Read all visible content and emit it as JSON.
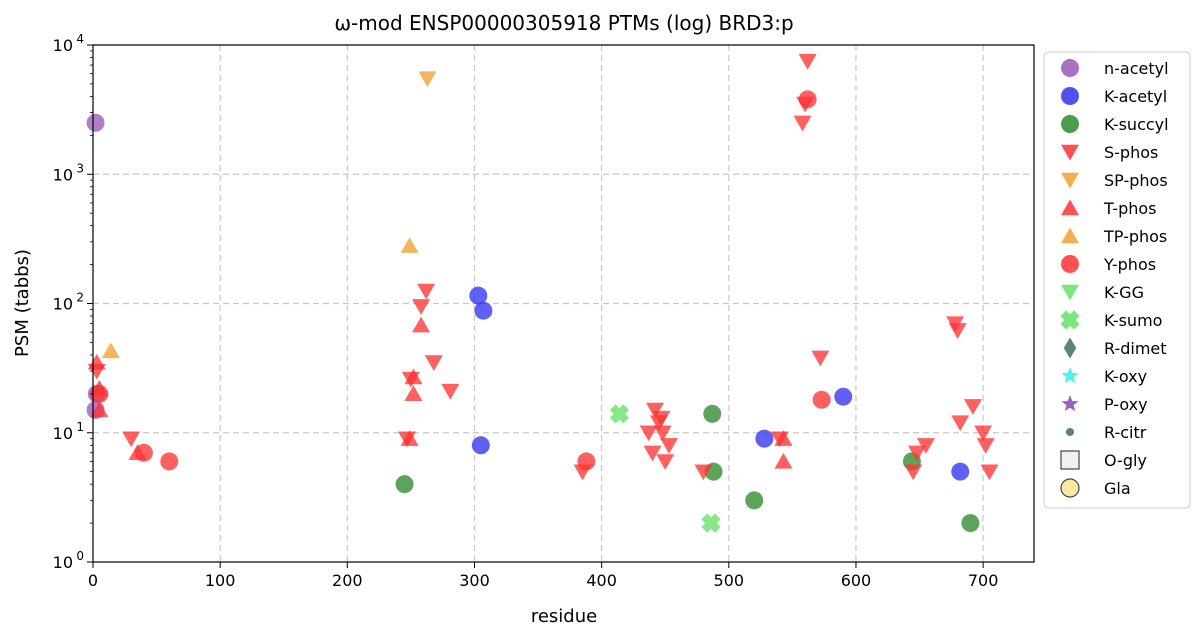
{
  "chart_data": {
    "type": "scatter",
    "title": "ω-mod ENSP00000305918 PTMs (log) BRD3:p",
    "xlabel": "residue",
    "ylabel": "PSM (tabbs)",
    "xlim": [
      0,
      740
    ],
    "ylim": [
      1,
      10000
    ],
    "yscale": "log",
    "xticks": [
      0,
      100,
      200,
      300,
      400,
      500,
      600,
      700
    ],
    "yticks": [
      {
        "value": 1,
        "base": "10",
        "exp": "0"
      },
      {
        "value": 10,
        "base": "10",
        "exp": "1"
      },
      {
        "value": 100,
        "base": "10",
        "exp": "2"
      },
      {
        "value": 1000,
        "base": "10",
        "exp": "3"
      },
      {
        "value": 10000,
        "base": "10",
        "exp": "4"
      }
    ],
    "grid": true,
    "legend_position": "outside-right",
    "series": [
      {
        "name": "n-acetyl",
        "marker": "circle",
        "color": "#9b59b6",
        "points": [
          [
            2,
            2500
          ],
          [
            2,
            15
          ],
          [
            3,
            20
          ]
        ]
      },
      {
        "name": "K-acetyl",
        "marker": "circle",
        "color": "#3333ee",
        "points": [
          [
            303,
            115
          ],
          [
            307,
            88
          ],
          [
            305,
            8
          ],
          [
            528,
            9
          ],
          [
            590,
            19
          ],
          [
            682,
            5
          ]
        ]
      },
      {
        "name": "K-succyl",
        "marker": "circle",
        "color": "#2e8b2e",
        "points": [
          [
            245,
            4
          ],
          [
            487,
            14
          ],
          [
            488,
            5
          ],
          [
            520,
            3
          ],
          [
            644,
            6
          ],
          [
            690,
            2
          ]
        ]
      },
      {
        "name": "S-phos",
        "marker": "triangle-down",
        "color": "#ff3333",
        "points": [
          [
            3,
            30
          ],
          [
            30,
            9
          ],
          [
            247,
            9
          ],
          [
            250,
            26
          ],
          [
            258,
            95
          ],
          [
            262,
            125
          ],
          [
            268,
            35
          ],
          [
            281,
            21
          ],
          [
            385,
            5
          ],
          [
            437,
            10
          ],
          [
            440,
            7
          ],
          [
            442,
            15
          ],
          [
            445,
            12
          ],
          [
            447,
            13
          ],
          [
            448,
            10
          ],
          [
            450,
            6
          ],
          [
            453,
            8
          ],
          [
            480,
            5
          ],
          [
            540,
            9
          ],
          [
            558,
            2500
          ],
          [
            560,
            3500
          ],
          [
            562,
            7500
          ],
          [
            572,
            38
          ],
          [
            645,
            5
          ],
          [
            648,
            7
          ],
          [
            655,
            8
          ],
          [
            678,
            70
          ],
          [
            680,
            62
          ],
          [
            682,
            12
          ],
          [
            692,
            16
          ],
          [
            700,
            10
          ],
          [
            702,
            8
          ],
          [
            705,
            5
          ]
        ]
      },
      {
        "name": "SP-phos",
        "marker": "triangle-down",
        "color": "#f0a030",
        "points": [
          [
            263,
            5500
          ]
        ]
      },
      {
        "name": "T-phos",
        "marker": "triangle-up",
        "color": "#ff3333",
        "points": [
          [
            3,
            35
          ],
          [
            5,
            22
          ],
          [
            5,
            15
          ],
          [
            35,
            7
          ],
          [
            249,
            9
          ],
          [
            252,
            27
          ],
          [
            252,
            20
          ],
          [
            258,
            68
          ],
          [
            543,
            9
          ],
          [
            543,
            6
          ]
        ]
      },
      {
        "name": "TP-phos",
        "marker": "triangle-up",
        "color": "#f0a030",
        "points": [
          [
            14,
            43
          ],
          [
            249,
            280
          ]
        ]
      },
      {
        "name": "Y-phos",
        "marker": "circle",
        "color": "#ff3333",
        "points": [
          [
            5,
            20
          ],
          [
            40,
            7
          ],
          [
            60,
            6
          ],
          [
            388,
            6
          ],
          [
            562,
            3800
          ],
          [
            573,
            18
          ]
        ]
      },
      {
        "name": "K-GG",
        "marker": "triangle-down",
        "color": "#66e066",
        "points": []
      },
      {
        "name": "K-sumo",
        "marker": "x",
        "color": "#66e066",
        "points": [
          [
            414,
            14
          ],
          [
            486,
            2
          ]
        ]
      },
      {
        "name": "R-dimet",
        "marker": "diamond",
        "color": "#3d6e5c",
        "points": []
      },
      {
        "name": "K-oxy",
        "marker": "star",
        "color": "#33eeee",
        "points": []
      },
      {
        "name": "P-oxy",
        "marker": "star",
        "color": "#8e44ad",
        "points": []
      },
      {
        "name": "R-citr",
        "marker": "small-circle",
        "color": "#3d6e5c",
        "points": []
      },
      {
        "name": "O-gly",
        "marker": "square-open",
        "color": "#f0f0f0",
        "points": []
      },
      {
        "name": "Gla",
        "marker": "circle-open",
        "color": "#fbe7a1",
        "points": []
      }
    ]
  }
}
